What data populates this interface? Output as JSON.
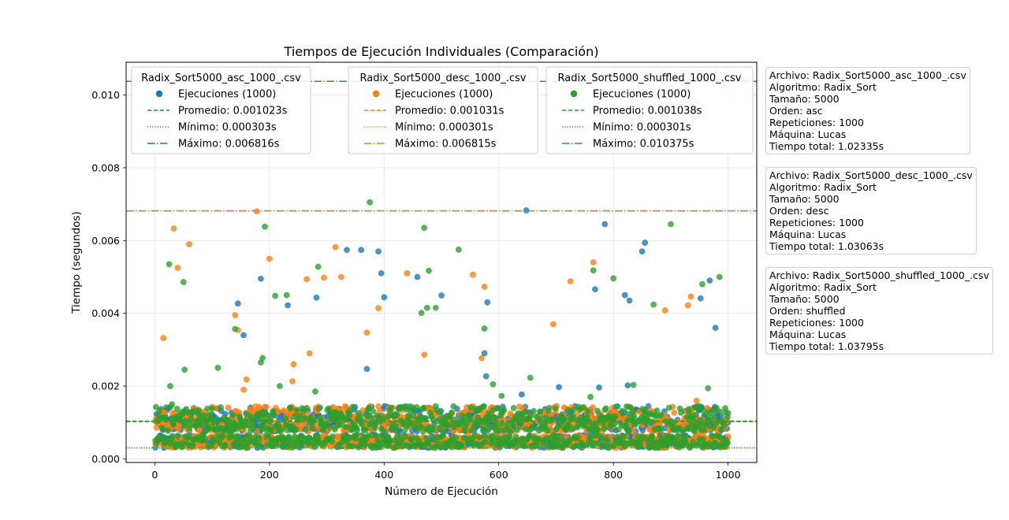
{
  "chart_data": {
    "type": "scatter",
    "title": "Tiempos de Ejecución Individuales (Comparación)",
    "xlabel": "Número de Ejecución",
    "ylabel": "Tiempo (segundos)",
    "xlim": [
      -50,
      1050
    ],
    "ylim": [
      -0.0001,
      0.0109
    ],
    "x_ticks": [
      0,
      200,
      400,
      600,
      800,
      1000
    ],
    "y_ticks": [
      0.0,
      0.002,
      0.004,
      0.006,
      0.008,
      0.01
    ],
    "x_tick_labels": [
      "0",
      "200",
      "400",
      "600",
      "800",
      "1000"
    ],
    "y_tick_labels": [
      "0.000",
      "0.002",
      "0.004",
      "0.006",
      "0.008",
      "0.010"
    ],
    "grid": true,
    "series": [
      {
        "name": "Radix_Sort5000_asc_1000_.csv",
        "color": "#1f77b4",
        "n": 1000,
        "promedio": 0.001023,
        "minimo": 0.000303,
        "maximo": 0.006816,
        "legend": {
          "title": "Radix_Sort5000_asc_1000_.csv",
          "ejecuciones": "Ejecuciones (1000)",
          "promedio": "Promedio: 0.001023s",
          "minimo": "Mínimo: 0.000303s",
          "maximo": "Máximo: 0.006816s"
        },
        "outliers": [
          [
            155,
            0.0034
          ],
          [
            145,
            0.00427
          ],
          [
            185,
            0.00495
          ],
          [
            232,
            0.00422
          ],
          [
            282,
            0.00443
          ],
          [
            335,
            0.00574
          ],
          [
            360,
            0.00574
          ],
          [
            370,
            0.00247
          ],
          [
            390,
            0.0057
          ],
          [
            395,
            0.0051
          ],
          [
            400,
            0.00444
          ],
          [
            458,
            0.005
          ],
          [
            500,
            0.00449
          ],
          [
            575,
            0.0029
          ],
          [
            578,
            0.00227
          ],
          [
            580,
            0.0043
          ],
          [
            640,
            0.00177
          ],
          [
            648,
            0.00683
          ],
          [
            705,
            0.00197
          ],
          [
            768,
            0.00466
          ],
          [
            775,
            0.00196
          ],
          [
            785,
            0.00645
          ],
          [
            820,
            0.0045
          ],
          [
            825,
            0.00202
          ],
          [
            828,
            0.00435
          ],
          [
            850,
            0.0057
          ],
          [
            855,
            0.00594
          ],
          [
            952,
            0.00441
          ],
          [
            968,
            0.0049
          ],
          [
            978,
            0.0036
          ]
        ]
      },
      {
        "name": "Radix_Sort5000_desc_1000_.csv",
        "color": "#ff7f0e",
        "n": 1000,
        "promedio": 0.001031,
        "minimo": 0.000301,
        "maximo": 0.006815,
        "legend": {
          "title": "Radix_Sort5000_desc_1000_.csv",
          "ejecuciones": "Ejecuciones (1000)",
          "promedio": "Promedio: 0.001031s",
          "minimo": "Mínimo: 0.000301s",
          "maximo": "Máximo: 0.006815s"
        },
        "outliers": [
          [
            15,
            0.00332
          ],
          [
            33,
            0.00633
          ],
          [
            40,
            0.00525
          ],
          [
            60,
            0.0059
          ],
          [
            140,
            0.00395
          ],
          [
            145,
            0.00354
          ],
          [
            155,
            0.0019
          ],
          [
            160,
            0.00218
          ],
          [
            178,
            0.0068
          ],
          [
            200,
            0.0055
          ],
          [
            240,
            0.00213
          ],
          [
            242,
            0.0026
          ],
          [
            265,
            0.00494
          ],
          [
            270,
            0.0029
          ],
          [
            295,
            0.00498
          ],
          [
            315,
            0.00582
          ],
          [
            325,
            0.005
          ],
          [
            370,
            0.00347
          ],
          [
            390,
            0.00414
          ],
          [
            440,
            0.0051
          ],
          [
            470,
            0.00286
          ],
          [
            555,
            0.00506
          ],
          [
            570,
            0.00277
          ],
          [
            575,
            0.00473
          ],
          [
            695,
            0.0037
          ],
          [
            725,
            0.00488
          ],
          [
            765,
            0.0054
          ],
          [
            890,
            0.00408
          ],
          [
            930,
            0.00422
          ],
          [
            935,
            0.00446
          ],
          [
            945,
            0.0016
          ]
        ]
      },
      {
        "name": "Radix_Sort5000_shuffled_1000_.csv",
        "color": "#2ca02c",
        "n": 1000,
        "promedio": 0.001038,
        "minimo": 0.000301,
        "maximo": 0.010375,
        "legend": {
          "title": "Radix_Sort5000_shuffled_1000_.csv",
          "ejecuciones": "Ejecuciones (1000)",
          "promedio": "Promedio: 0.001038s",
          "minimo": "Mínimo: 0.000301s",
          "maximo": "Máximo: 0.010375s"
        },
        "outliers": [
          [
            25,
            0.00535
          ],
          [
            27,
            0.002
          ],
          [
            30,
            0.0015
          ],
          [
            50,
            0.00486
          ],
          [
            52,
            0.00245
          ],
          [
            110,
            0.0025
          ],
          [
            140,
            0.00357
          ],
          [
            185,
            0.00265
          ],
          [
            188,
            0.00277
          ],
          [
            192,
            0.00638
          ],
          [
            210,
            0.00448
          ],
          [
            218,
            0.002
          ],
          [
            230,
            0.0045
          ],
          [
            280,
            0.00185
          ],
          [
            285,
            0.00528
          ],
          [
            375,
            0.00705
          ],
          [
            410,
            0.00133
          ],
          [
            465,
            0.00401
          ],
          [
            470,
            0.00635
          ],
          [
            475,
            0.00415
          ],
          [
            478,
            0.00517
          ],
          [
            490,
            0.00415
          ],
          [
            530,
            0.00575
          ],
          [
            575,
            0.00358
          ],
          [
            590,
            0.00205
          ],
          [
            605,
            0.00173
          ],
          [
            655,
            0.00223
          ],
          [
            760,
            0.0017
          ],
          [
            765,
            0.00518
          ],
          [
            800,
            0.00496
          ],
          [
            835,
            0.00203
          ],
          [
            870,
            0.00424
          ],
          [
            900,
            0.00645
          ],
          [
            955,
            0.0048
          ],
          [
            965,
            0.00194
          ],
          [
            985,
            0.005
          ]
        ]
      }
    ],
    "info_boxes": [
      {
        "archivo": "Archivo: Radix_Sort5000_asc_1000_.csv",
        "algoritmo": "Algoritmo: Radix_Sort",
        "tamano": "Tamaño: 5000",
        "orden": "Orden: asc",
        "repeticiones": "Repeticiones: 1000",
        "maquina": "Máquina: Lucas",
        "tiempo_total": "Tiempo total: 1.02335s"
      },
      {
        "archivo": "Archivo: Radix_Sort5000_desc_1000_.csv",
        "algoritmo": "Algoritmo: Radix_Sort",
        "tamano": "Tamaño: 5000",
        "orden": "Orden: desc",
        "repeticiones": "Repeticiones: 1000",
        "maquina": "Máquina: Lucas",
        "tiempo_total": "Tiempo total: 1.03063s"
      },
      {
        "archivo": "Archivo: Radix_Sort5000_shuffled_1000_.csv",
        "algoritmo": "Algoritmo: Radix_Sort",
        "tamano": "Tamaño: 5000",
        "orden": "Orden: shuffled",
        "repeticiones": "Repeticiones: 1000",
        "maquina": "Máquina: Lucas",
        "tiempo_total": "Tiempo total: 1.03795s"
      }
    ]
  }
}
